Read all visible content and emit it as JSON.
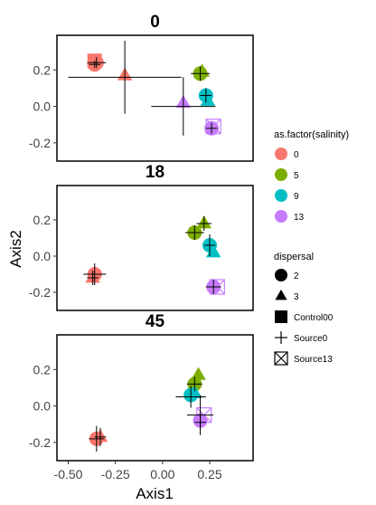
{
  "chart_data": {
    "type": "scatter",
    "xlabel": "Axis1",
    "ylabel": "Axis2",
    "xlim": [
      -0.56,
      0.48
    ],
    "ylim": [
      -0.3,
      0.39
    ],
    "x_ticks": [
      -0.5,
      -0.25,
      0.0,
      0.25
    ],
    "x_tick_labels": [
      "-0.50",
      "-0.25",
      "0.00",
      "0.25"
    ],
    "y_ticks": [
      -0.2,
      0.0,
      0.2
    ],
    "y_tick_labels": [
      "-0.2",
      "0.0",
      "0.2"
    ],
    "grid": false,
    "legend_position": "right",
    "colors": {
      "0": "#f8766d",
      "5": "#7cae00",
      "9": "#00bfc4",
      "13": "#c77cff"
    },
    "legends": [
      {
        "title": "as.factor(salinity)",
        "items": [
          {
            "label": "0",
            "color": "#f8766d"
          },
          {
            "label": "5",
            "color": "#7cae00"
          },
          {
            "label": "9",
            "color": "#00bfc4"
          },
          {
            "label": "13",
            "color": "#c77cff"
          }
        ]
      },
      {
        "title": "dispersal",
        "items": [
          {
            "label": "2",
            "shape": "circle"
          },
          {
            "label": "3",
            "shape": "triangle"
          },
          {
            "label": "Control00",
            "shape": "square"
          },
          {
            "label": "Source0",
            "shape": "cross"
          },
          {
            "label": "Source13",
            "shape": "boxx"
          }
        ]
      }
    ],
    "panels": [
      {
        "title": "0",
        "points": [
          {
            "x": -0.36,
            "y": 0.25,
            "salinity": "0",
            "shape": "square"
          },
          {
            "x": -0.35,
            "y": 0.24,
            "salinity": "0",
            "shape": "circle"
          },
          {
            "x": -0.36,
            "y": 0.23,
            "salinity": "0",
            "shape": "circle"
          },
          {
            "x": -0.2,
            "y": 0.17,
            "salinity": "0",
            "shape": "triangle"
          },
          {
            "x": 0.2,
            "y": 0.18,
            "salinity": "5",
            "shape": "circle"
          },
          {
            "x": 0.21,
            "y": 0.19,
            "salinity": "5",
            "shape": "triangle"
          },
          {
            "x": 0.23,
            "y": 0.06,
            "salinity": "9",
            "shape": "circle"
          },
          {
            "x": 0.24,
            "y": 0.03,
            "salinity": "9",
            "shape": "triangle"
          },
          {
            "x": 0.11,
            "y": 0.02,
            "salinity": "13",
            "shape": "triangle"
          },
          {
            "x": 0.27,
            "y": -0.11,
            "salinity": "13",
            "shape": "boxx"
          },
          {
            "x": 0.26,
            "y": -0.12,
            "salinity": "13",
            "shape": "circle"
          }
        ],
        "errorbars": [
          {
            "x": -0.35,
            "y": 0.24,
            "xerr": 0.05,
            "yerr": 0.03
          },
          {
            "x": -0.36,
            "y": 0.23,
            "xerr": 0.03,
            "yerr": 0.02
          },
          {
            "x": -0.2,
            "y": 0.16,
            "xerr": 0.3,
            "yerr": 0.2
          },
          {
            "x": 0.2,
            "y": 0.18,
            "xerr": 0.05,
            "yerr": 0.04
          },
          {
            "x": 0.23,
            "y": 0.06,
            "xerr": 0.03,
            "yerr": 0.04
          },
          {
            "x": 0.11,
            "y": 0.0,
            "xerr": 0.17,
            "yerr": 0.16
          },
          {
            "x": 0.26,
            "y": -0.12,
            "xerr": 0.03,
            "yerr": 0.03
          }
        ]
      },
      {
        "title": "18",
        "points": [
          {
            "x": -0.36,
            "y": -0.1,
            "salinity": "0",
            "shape": "circle"
          },
          {
            "x": -0.37,
            "y": -0.12,
            "salinity": "0",
            "shape": "triangle"
          },
          {
            "x": 0.17,
            "y": 0.13,
            "salinity": "5",
            "shape": "circle"
          },
          {
            "x": 0.22,
            "y": 0.18,
            "salinity": "5",
            "shape": "triangle"
          },
          {
            "x": 0.25,
            "y": 0.06,
            "salinity": "9",
            "shape": "circle"
          },
          {
            "x": 0.27,
            "y": 0.02,
            "salinity": "9",
            "shape": "triangle"
          },
          {
            "x": 0.27,
            "y": -0.17,
            "salinity": "13",
            "shape": "circle"
          },
          {
            "x": 0.29,
            "y": -0.17,
            "salinity": "13",
            "shape": "boxx"
          }
        ],
        "errorbars": [
          {
            "x": -0.36,
            "y": -0.1,
            "xerr": 0.06,
            "yerr": 0.06
          },
          {
            "x": -0.37,
            "y": -0.12,
            "xerr": 0.03,
            "yerr": 0.04
          },
          {
            "x": 0.17,
            "y": 0.13,
            "xerr": 0.05,
            "yerr": 0.04
          },
          {
            "x": 0.22,
            "y": 0.18,
            "xerr": 0.04,
            "yerr": 0.04
          },
          {
            "x": 0.25,
            "y": 0.06,
            "xerr": 0.03,
            "yerr": 0.06
          },
          {
            "x": 0.27,
            "y": -0.17,
            "xerr": 0.04,
            "yerr": 0.04
          }
        ]
      },
      {
        "title": "45",
        "points": [
          {
            "x": -0.35,
            "y": -0.18,
            "salinity": "0",
            "shape": "circle"
          },
          {
            "x": -0.33,
            "y": -0.17,
            "salinity": "0",
            "shape": "triangle"
          },
          {
            "x": 0.17,
            "y": 0.12,
            "salinity": "5",
            "shape": "circle"
          },
          {
            "x": 0.19,
            "y": 0.17,
            "salinity": "5",
            "shape": "triangle"
          },
          {
            "x": 0.15,
            "y": 0.06,
            "salinity": "9",
            "shape": "circle"
          },
          {
            "x": 0.17,
            "y": 0.07,
            "salinity": "9",
            "shape": "triangle"
          },
          {
            "x": 0.2,
            "y": -0.08,
            "salinity": "13",
            "shape": "circle"
          },
          {
            "x": 0.22,
            "y": -0.05,
            "salinity": "13",
            "shape": "boxx"
          }
        ],
        "errorbars": [
          {
            "x": -0.35,
            "y": -0.18,
            "xerr": 0.04,
            "yerr": 0.07
          },
          {
            "x": -0.33,
            "y": -0.17,
            "xerr": 0.03,
            "yerr": 0.05
          },
          {
            "x": 0.17,
            "y": 0.12,
            "xerr": 0.04,
            "yerr": 0.04
          },
          {
            "x": 0.15,
            "y": 0.05,
            "xerr": 0.08,
            "yerr": 0.06
          },
          {
            "x": 0.2,
            "y": -0.05,
            "xerr": 0.07,
            "yerr": 0.11
          },
          {
            "x": 0.2,
            "y": -0.09,
            "xerr": 0.03,
            "yerr": 0.04
          }
        ]
      }
    ]
  }
}
